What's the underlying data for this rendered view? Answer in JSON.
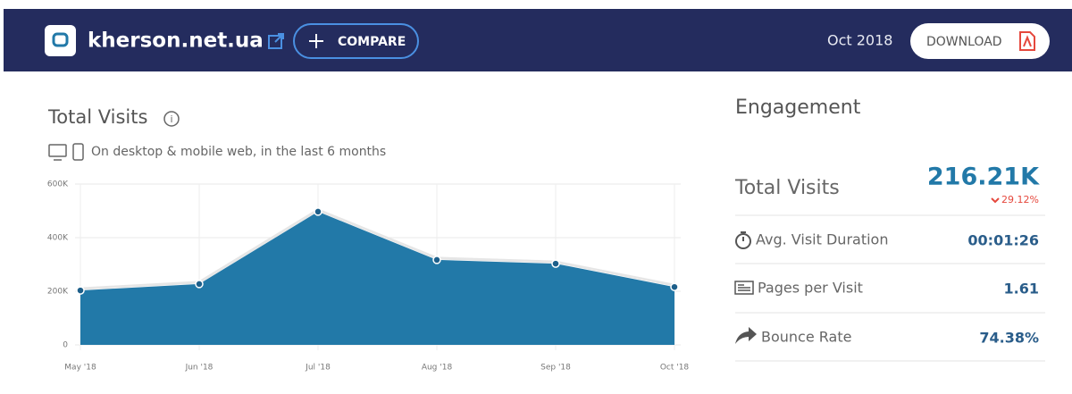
{
  "header": {
    "site": "kherson.net.ua",
    "compare": "COMPARE",
    "date": "Oct 2018",
    "download": "DOWNLOAD"
  },
  "chart_data": {
    "type": "area",
    "title": "Total Visits",
    "subtitle": "On desktop & mobile web, in the last 6 months",
    "categories": [
      "May '18",
      "Jun '18",
      "Jul '18",
      "Aug '18",
      "Sep '18",
      "Oct '18"
    ],
    "series": [
      {
        "name": "Total Visits",
        "color": "#2279a8",
        "values": [
          203000,
          227000,
          497000,
          317000,
          303000,
          216000
        ]
      }
    ],
    "ylim": [
      0,
      600000
    ],
    "yticks": [
      0,
      {
        "value": 200000,
        "label": "200K"
      },
      {
        "value": 400000,
        "label": "400K"
      },
      {
        "value": 600000,
        "label": "600K"
      }
    ],
    "grid": true
  },
  "engagement": {
    "title": "Engagement",
    "total": {
      "label": "Total Visits",
      "value": "216.21K",
      "change": "29.12%"
    },
    "rows": [
      {
        "label": "Avg. Visit Duration",
        "value": "00:01:26"
      },
      {
        "label": "Pages per Visit",
        "value": "1.61"
      },
      {
        "label": "Bounce Rate",
        "value": "74.38%"
      }
    ]
  }
}
